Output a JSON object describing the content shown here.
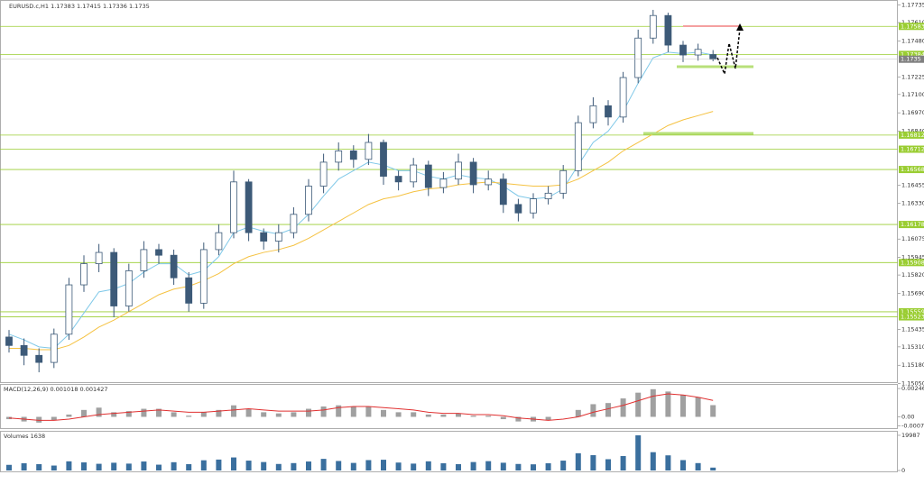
{
  "chart_data": [
    {
      "type": "candlestick",
      "title": "EURUSD.c,H1",
      "open": [
        1.1538,
        1.1532,
        1.1525,
        1.152,
        1.154,
        1.1575,
        1.159,
        1.1598,
        1.156,
        1.1585,
        1.16,
        1.1596,
        1.158,
        1.1562,
        1.16,
        1.1612,
        1.1648,
        1.1612,
        1.1606,
        1.1612,
        1.1625,
        1.1645,
        1.1662,
        1.167,
        1.1664,
        1.1676,
        1.1652,
        1.1648,
        1.166,
        1.1644,
        1.165,
        1.1662,
        1.1646,
        1.165,
        1.1632,
        1.1626,
        1.1636,
        1.164,
        1.1656,
        1.169,
        1.1702,
        1.1694,
        1.1722,
        1.175,
        1.1766,
        1.1745,
        1.1738,
        1.17383
      ],
      "high": [
        1.1543,
        1.1537,
        1.153,
        1.1544,
        1.158,
        1.1596,
        1.1604,
        1.1601,
        1.159,
        1.1606,
        1.1604,
        1.16,
        1.1584,
        1.1605,
        1.1618,
        1.1656,
        1.165,
        1.1615,
        1.1618,
        1.163,
        1.165,
        1.1668,
        1.1676,
        1.1674,
        1.1682,
        1.1678,
        1.1656,
        1.1665,
        1.1663,
        1.1655,
        1.1668,
        1.1665,
        1.1656,
        1.1654,
        1.1636,
        1.164,
        1.1645,
        1.166,
        1.1695,
        1.1708,
        1.1706,
        1.1726,
        1.1756,
        1.177,
        1.1768,
        1.1748,
        1.1746,
        1.17415
      ],
      "low": [
        1.1527,
        1.1518,
        1.1513,
        1.1516,
        1.1536,
        1.157,
        1.1584,
        1.1552,
        1.1556,
        1.158,
        1.159,
        1.1575,
        1.1556,
        1.1558,
        1.1596,
        1.1608,
        1.1606,
        1.16,
        1.1598,
        1.1608,
        1.162,
        1.164,
        1.1656,
        1.1658,
        1.166,
        1.1646,
        1.1642,
        1.1644,
        1.1638,
        1.164,
        1.1646,
        1.164,
        1.1642,
        1.1626,
        1.162,
        1.1622,
        1.1632,
        1.1636,
        1.1652,
        1.1686,
        1.1688,
        1.169,
        1.1718,
        1.1746,
        1.174,
        1.1733,
        1.1734,
        1.17336
      ],
      "close": [
        1.1532,
        1.1525,
        1.152,
        1.154,
        1.1575,
        1.159,
        1.1598,
        1.156,
        1.1585,
        1.16,
        1.1596,
        1.158,
        1.1562,
        1.16,
        1.1612,
        1.1648,
        1.1612,
        1.1606,
        1.1612,
        1.1625,
        1.1645,
        1.1662,
        1.167,
        1.1664,
        1.1676,
        1.1652,
        1.1648,
        1.166,
        1.1644,
        1.165,
        1.1662,
        1.1646,
        1.165,
        1.1632,
        1.1626,
        1.1636,
        1.164,
        1.1656,
        1.169,
        1.1702,
        1.1694,
        1.1722,
        1.175,
        1.1766,
        1.1745,
        1.1738,
        1.1742,
        1.1735
      ],
      "up_color": "#ffffff",
      "down_color": "#3d5a78",
      "outline_color": "#3d5a78",
      "series": [
        {
          "color": "#7fc8e8",
          "values": [
            1.154,
            1.1536,
            1.1531,
            1.153,
            1.154,
            1.1555,
            1.157,
            1.1572,
            1.1576,
            1.1584,
            1.159,
            1.159,
            1.1582,
            1.1585,
            1.1595,
            1.1612,
            1.1616,
            1.1613,
            1.1611,
            1.1615,
            1.1625,
            1.1638,
            1.165,
            1.1656,
            1.1662,
            1.166,
            1.1656,
            1.1656,
            1.1652,
            1.165,
            1.1653,
            1.1651,
            1.165,
            1.1645,
            1.1638,
            1.1636,
            1.1637,
            1.1643,
            1.166,
            1.1676,
            1.1684,
            1.1698,
            1.1718,
            1.1736,
            1.174,
            1.1739,
            1.174,
            1.1738
          ]
        },
        {
          "color": "#f5c242",
          "values": [
            1.153,
            1.153,
            1.1529,
            1.1529,
            1.1532,
            1.1538,
            1.1545,
            1.155,
            1.1556,
            1.1562,
            1.1568,
            1.1572,
            1.1574,
            1.1578,
            1.1583,
            1.159,
            1.1595,
            1.1598,
            1.16,
            1.1603,
            1.1608,
            1.1614,
            1.162,
            1.1626,
            1.1632,
            1.1636,
            1.1638,
            1.1641,
            1.1643,
            1.1644,
            1.1646,
            1.1647,
            1.1648,
            1.1647,
            1.1646,
            1.1645,
            1.1645,
            1.1646,
            1.165,
            1.1656,
            1.1662,
            1.167,
            1.1676,
            1.1682,
            1.1688,
            1.1692,
            1.1695,
            1.1698
          ]
        }
      ],
      "levels": [
        1.17583,
        1.17384,
        1.16812,
        1.16712,
        1.16568,
        1.16178,
        1.15908,
        1.15559,
        1.15523
      ],
      "level_color": "#9acd32",
      "price_label_color": "#808080",
      "ylim": [
        1.1506,
        1.1777
      ],
      "yticks": [
        1.17735,
        {
          "value": 1.1761,
          "label": "1.17610"
        },
        {
          "value": 1.1748,
          "label": "1.17480"
        },
        1.17225,
        {
          "value": 1.171,
          "label": "1.17100"
        },
        {
          "value": 1.1697,
          "label": "1.16970"
        },
        {
          "value": 1.1684,
          "label": "1.16840"
        },
        1.16455,
        {
          "value": 1.1633,
          "label": "1.16330"
        },
        1.16075,
        1.15945,
        {
          "value": 1.1582,
          "label": "1.15820"
        },
        {
          "value": 1.1569,
          "label": "1.15690"
        },
        1.15435,
        {
          "value": 1.1531,
          "label": "1.15310"
        },
        {
          "value": 1.1518,
          "label": "1.15180"
        },
        {
          "value": 1.1505,
          "label": "1.15050"
        }
      ]
    },
    {
      "type": "macd",
      "title": "MACD(12,26,9)",
      "hist_color": "#a0a0a0",
      "signal_color": "#e03030",
      "values": [
        -0.0002,
        -0.0004,
        -0.0005,
        -0.0003,
        0.0002,
        0.0006,
        0.0008,
        0.0004,
        0.0005,
        0.0007,
        0.0007,
        0.0004,
        0.0001,
        0.0004,
        0.0006,
        0.001,
        0.0007,
        0.0004,
        0.0003,
        0.0004,
        0.0007,
        0.0009,
        0.001,
        0.0009,
        0.0009,
        0.0006,
        0.0004,
        0.0004,
        0.0002,
        0.0002,
        0.0003,
        0.0001,
        0.0001,
        -0.0002,
        -0.0004,
        -0.0004,
        -0.0003,
        0.0,
        0.0006,
        0.0011,
        0.0012,
        0.0016,
        0.0021,
        0.0024,
        0.0022,
        0.0019,
        0.0017,
        0.001018
      ],
      "signal": [
        -0.0001,
        -0.0002,
        -0.0003,
        -0.0003,
        -0.0002,
        0.0,
        0.0002,
        0.0003,
        0.0004,
        0.0005,
        0.0006,
        0.0005,
        0.0004,
        0.0004,
        0.0005,
        0.0006,
        0.0007,
        0.0006,
        0.0005,
        0.0005,
        0.0005,
        0.0006,
        0.0008,
        0.0009,
        0.0009,
        0.0008,
        0.0007,
        0.0006,
        0.0004,
        0.0003,
        0.0003,
        0.0002,
        0.0002,
        0.0001,
        -0.0001,
        -0.0002,
        -0.0003,
        -0.0002,
        0.0,
        0.0004,
        0.0007,
        0.001,
        0.0014,
        0.0018,
        0.002,
        0.0019,
        0.0017,
        0.001427
      ],
      "ylim": [
        -0.0009,
        0.0027
      ],
      "yticks": [
        0.00246,
        {
          "value": 0,
          "label": "0.00"
        },
        -0.000788
      ]
    },
    {
      "type": "volume",
      "title": "Volumes",
      "color": "#3a6f9e",
      "values": [
        3200,
        4100,
        3600,
        2800,
        5200,
        4600,
        3800,
        4400,
        3900,
        5100,
        3300,
        4700,
        3600,
        5800,
        6200,
        7400,
        5600,
        4800,
        3700,
        4200,
        5100,
        6600,
        5400,
        4300,
        5900,
        6100,
        4500,
        3900,
        5200,
        4100,
        3600,
        4800,
        5300,
        4400,
        3700,
        3500,
        4100,
        5600,
        9800,
        8700,
        6400,
        8200,
        19987,
        10400,
        8600,
        5900,
        4200,
        1638
      ],
      "ylim": [
        0,
        21000
      ],
      "yticks": [
        19987,
        0
      ]
    }
  ]
}
